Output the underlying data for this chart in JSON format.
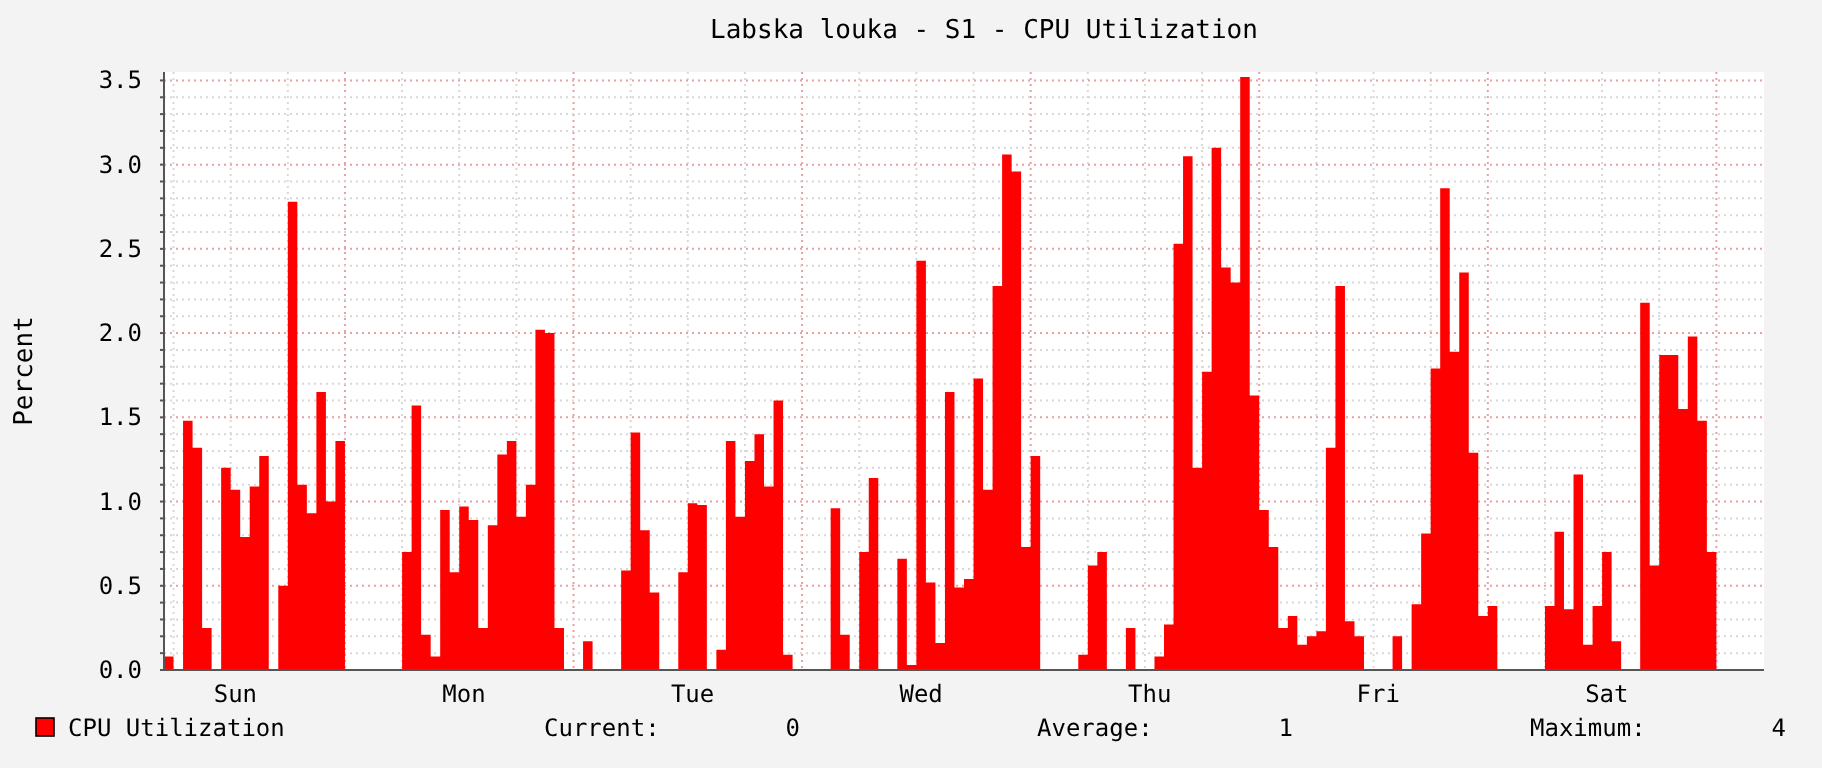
{
  "chart_data": {
    "type": "area",
    "title": "Labska louka - S1 - CPU Utilization",
    "ylabel": "Percent",
    "ylim": [
      0,
      3.55
    ],
    "yticks": [
      {
        "value": 0,
        "label": "0.0"
      },
      {
        "value": 0.1,
        "label": null
      },
      {
        "value": 0.2,
        "label": null
      },
      {
        "value": 0.3,
        "label": null
      },
      {
        "value": 0.4,
        "label": null
      },
      {
        "value": 0.5,
        "label": "0.5"
      },
      {
        "value": 0.6,
        "label": null
      },
      {
        "value": 0.7,
        "label": null
      },
      {
        "value": 0.8,
        "label": null
      },
      {
        "value": 0.9,
        "label": null
      },
      {
        "value": 1,
        "label": "1.0"
      },
      {
        "value": 1.1,
        "label": null
      },
      {
        "value": 1.2,
        "label": null
      },
      {
        "value": 1.3,
        "label": null
      },
      {
        "value": 1.4,
        "label": null
      },
      {
        "value": 1.5,
        "label": "1.5"
      },
      {
        "value": 1.6,
        "label": null
      },
      {
        "value": 1.7,
        "label": null
      },
      {
        "value": 1.8,
        "label": null
      },
      {
        "value": 1.9,
        "label": null
      },
      {
        "value": 2,
        "label": "2.0"
      },
      {
        "value": 2.1,
        "label": null
      },
      {
        "value": 2.2,
        "label": null
      },
      {
        "value": 2.3,
        "label": null
      },
      {
        "value": 2.4,
        "label": null
      },
      {
        "value": 2.5,
        "label": "2.5"
      },
      {
        "value": 2.6,
        "label": null
      },
      {
        "value": 2.7,
        "label": null
      },
      {
        "value": 2.8,
        "label": null
      },
      {
        "value": 2.9,
        "label": null
      },
      {
        "value": 3,
        "label": "3.0"
      },
      {
        "value": 3.1,
        "label": null
      },
      {
        "value": 3.2,
        "label": null
      },
      {
        "value": 3.3,
        "label": null
      },
      {
        "value": 3.4,
        "label": null
      },
      {
        "value": 3.5,
        "label": "3.5"
      }
    ],
    "grid": true,
    "legend": "bottom left",
    "annotations": [
      "Current: 0",
      "Average: 1",
      "Maximum: 4"
    ],
    "categories": [
      null,
      null,
      null,
      null,
      null,
      null,
      null,
      "Sun",
      null,
      null,
      null,
      null,
      null,
      null,
      null,
      null,
      null,
      null,
      null,
      null,
      null,
      null,
      null,
      null,
      null,
      null,
      null,
      null,
      null,
      null,
      null,
      "Mon",
      null,
      null,
      null,
      null,
      null,
      null,
      null,
      null,
      null,
      null,
      null,
      null,
      null,
      null,
      null,
      null,
      null,
      null,
      null,
      null,
      null,
      null,
      null,
      "Tue",
      null,
      null,
      null,
      null,
      null,
      null,
      null,
      null,
      null,
      null,
      null,
      null,
      null,
      null,
      null,
      null,
      null,
      null,
      null,
      null,
      null,
      null,
      null,
      "Wed",
      null,
      null,
      null,
      null,
      null,
      null,
      null,
      null,
      null,
      null,
      null,
      null,
      null,
      null,
      null,
      null,
      null,
      null,
      null,
      null,
      null,
      null,
      null,
      "Thu",
      null,
      null,
      null,
      null,
      null,
      null,
      null,
      null,
      null,
      null,
      null,
      null,
      null,
      null,
      null,
      null,
      null,
      null,
      null,
      null,
      null,
      null,
      null,
      "Fri",
      null,
      null,
      null,
      null,
      null,
      null,
      null,
      null,
      null,
      null,
      null,
      null,
      null,
      null,
      null,
      null,
      null,
      null,
      null,
      null,
      null,
      null,
      null,
      "Sat",
      null,
      null,
      null,
      null,
      null,
      null,
      null,
      null,
      null,
      null,
      null,
      null,
      null,
      null,
      null,
      null
    ],
    "series": [
      {
        "name": "CPU Utilization",
        "color": "#ff0000",
        "values": [
          0.08,
          0,
          1.48,
          1.32,
          0.25,
          0,
          1.2,
          1.07,
          0.79,
          1.09,
          1.27,
          0,
          0.5,
          2.78,
          1.1,
          0.93,
          1.65,
          1.0,
          1.36,
          0,
          0,
          0,
          0,
          0,
          0,
          0.7,
          1.57,
          0.21,
          0.08,
          0.95,
          0.58,
          0.97,
          0.89,
          0.25,
          0.86,
          1.28,
          1.36,
          0.91,
          1.1,
          2.02,
          2.0,
          0.25,
          0,
          0,
          0.17,
          0,
          0,
          0,
          0.59,
          1.41,
          0.83,
          0.46,
          0,
          0,
          0.58,
          0.99,
          0.98,
          0,
          0.12,
          1.36,
          0.91,
          1.24,
          1.4,
          1.09,
          1.6,
          0.09,
          0,
          0,
          0,
          0,
          0.96,
          0.21,
          0,
          0.7,
          1.14,
          0,
          0,
          0.66,
          0.03,
          2.43,
          0.52,
          0.16,
          1.65,
          0.49,
          0.54,
          1.73,
          1.07,
          2.28,
          3.06,
          2.96,
          0.73,
          1.27,
          0,
          0,
          0,
          0,
          0.09,
          0.62,
          0.7,
          0,
          0,
          0.25,
          0,
          0,
          0.08,
          0.27,
          2.53,
          3.05,
          1.2,
          1.77,
          3.1,
          2.39,
          2.3,
          3.52,
          1.63,
          0.95,
          0.73,
          0.25,
          0.32,
          0.15,
          0.2,
          0.23,
          1.32,
          2.28,
          0.29,
          0.2,
          0,
          0,
          0,
          0.2,
          0,
          0.39,
          0.81,
          1.79,
          2.86,
          1.89,
          2.36,
          1.29,
          0.32,
          0.38,
          0,
          0,
          0,
          0,
          0,
          0.38,
          0.82,
          0.36,
          1.16,
          0.15,
          0.38,
          0.7,
          0.17,
          0,
          0,
          2.18,
          0.62,
          1.87,
          1.87,
          1.55,
          1.98,
          1.48,
          0.7,
          0,
          0,
          0,
          0,
          0
        ]
      }
    ]
  }
}
